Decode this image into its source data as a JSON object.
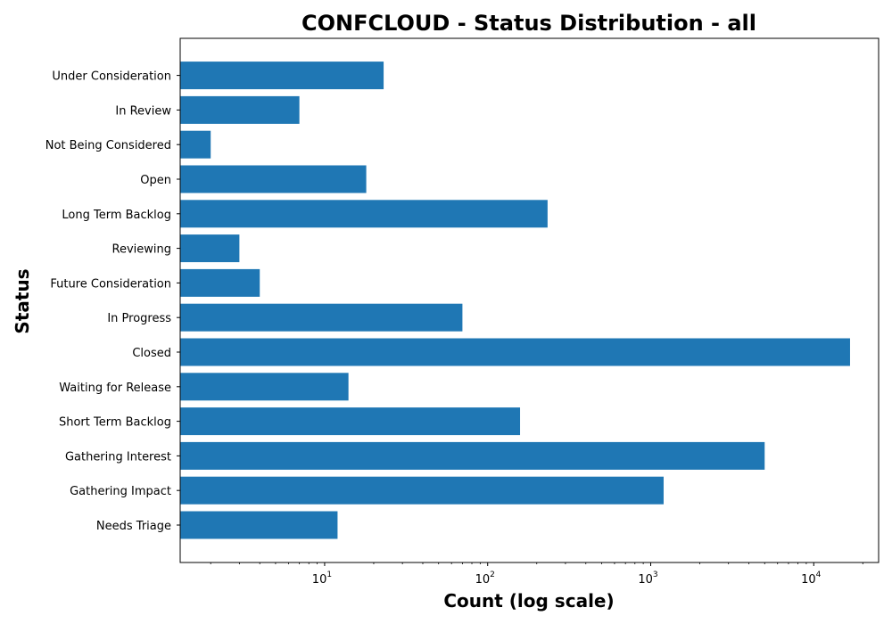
{
  "chart_data": {
    "type": "bar",
    "orientation": "horizontal",
    "title": "CONFCLOUD - Status Distribution - all",
    "xlabel": "Count (log scale)",
    "ylabel": "Status",
    "xscale": "log",
    "xlim": [
      1.3,
      25000
    ],
    "grid": false,
    "color": "#1f77b4",
    "categories": [
      "Needs Triage",
      "Gathering Impact",
      "Gathering Interest",
      "Short Term Backlog",
      "Waiting for Release",
      "Closed",
      "In Progress",
      "Future Consideration",
      "Reviewing",
      "Long Term Backlog",
      "Open",
      "Not Being Considered",
      "In Review",
      "Under Consideration"
    ],
    "values": [
      12,
      1200,
      5000,
      158,
      14,
      16700,
      70,
      4,
      3,
      233,
      18,
      2,
      7,
      23
    ],
    "x_ticks": [
      {
        "value": 10,
        "base": "10",
        "exp": "1"
      },
      {
        "value": 100,
        "base": "10",
        "exp": "2"
      },
      {
        "value": 1000,
        "base": "10",
        "exp": "3"
      },
      {
        "value": 10000,
        "base": "10",
        "exp": "4"
      }
    ]
  }
}
